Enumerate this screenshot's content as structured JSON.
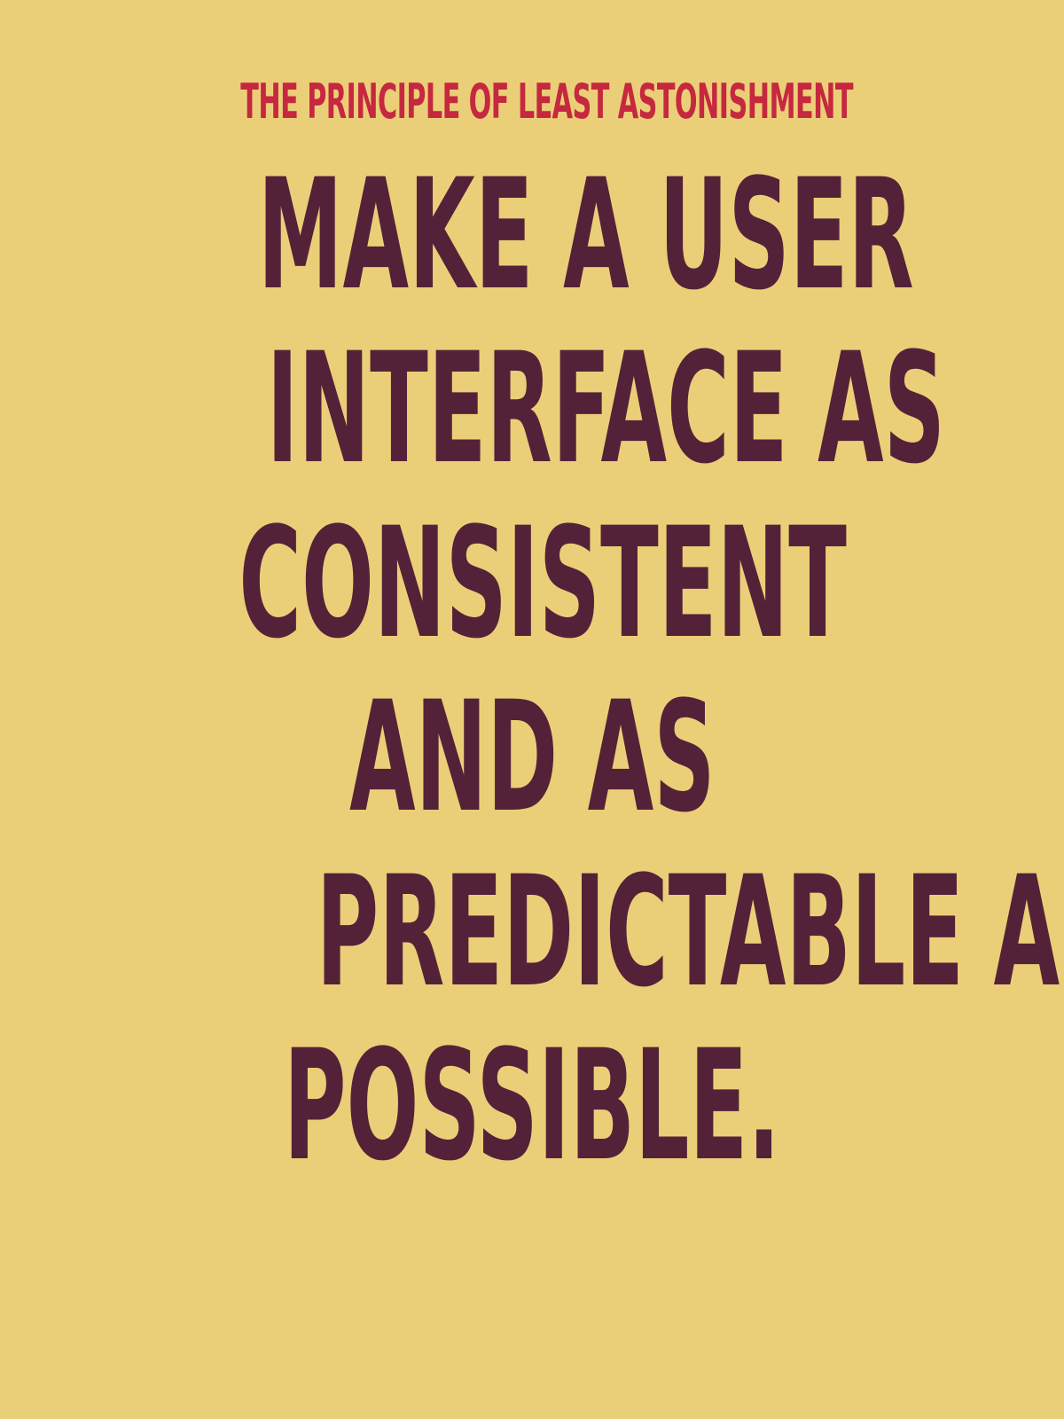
{
  "poster": {
    "kicker": "THE PRINCIPLE OF LEAST ASTONISHMENT",
    "quote_lines": [
      "MAKE A USER",
      "INTERFACE AS",
      "CONSISTENT",
      "AND AS",
      "PREDICTABLE AS",
      "POSSIBLE."
    ],
    "colors": {
      "background": "#ebcf78",
      "kicker": "#c5283f",
      "quote": "#542238"
    }
  }
}
